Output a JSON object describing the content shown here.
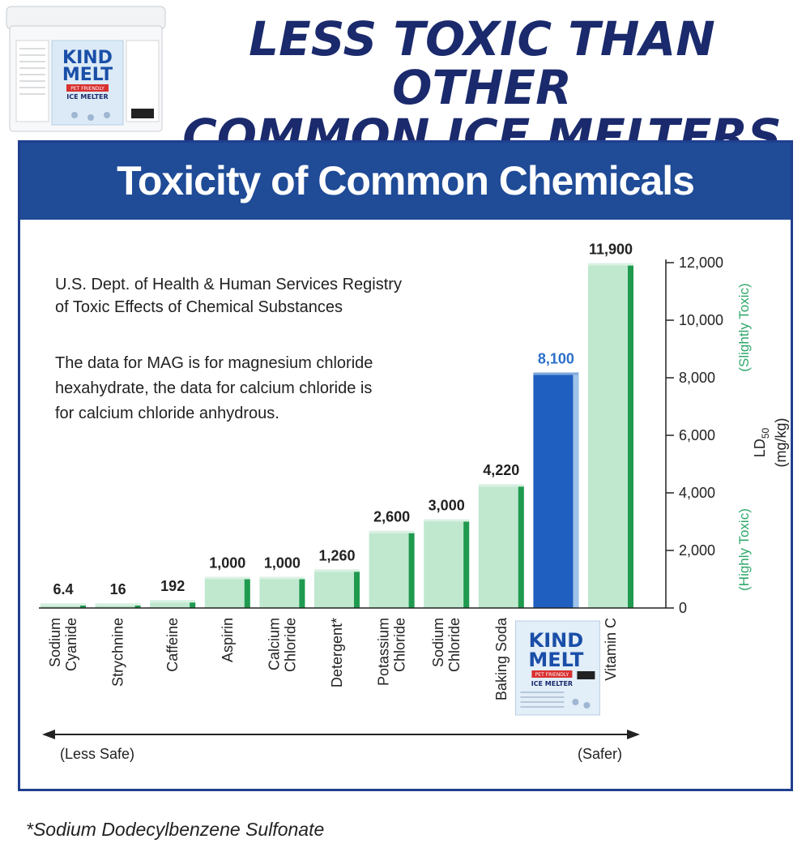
{
  "headline": {
    "line1": "LESS TOXIC THAN OTHER",
    "line2": "COMMON ICE MELTERS"
  },
  "product": {
    "brand_line1": "KIND",
    "brand_line2": "MELT",
    "tag": "PET FRIENDLY",
    "subtitle": "ICE MELTER"
  },
  "panel": {
    "title": "Toxicity of Common Chemicals"
  },
  "notes": {
    "source_line1": "U.S. Dept. of Health & Human Services Registry",
    "source_line2": "of Toxic Effects of Chemical Substances",
    "data_line1": "The data for MAG is for magnesium chloride",
    "data_line2": "hexahydrate, the data for calcium chloride is",
    "data_line3": "for calcium chloride anhydrous."
  },
  "footnote": "*Sodium Dodecylbenzene Sulfonate",
  "chart_data": {
    "type": "bar",
    "title": "Toxicity of Common Chemicals",
    "categories": [
      [
        "Sodium",
        "Cyanide"
      ],
      [
        "Strychnine"
      ],
      [
        "Caffeine"
      ],
      [
        "Aspirin"
      ],
      [
        "Calcium",
        "Chloride"
      ],
      [
        "Detergent*"
      ],
      [
        "Potassium",
        "Chloride"
      ],
      [
        "Sodium",
        "Chloride"
      ],
      [
        "Baking Soda"
      ],
      [],
      [
        "Vitamin C"
      ]
    ],
    "values": [
      6.4,
      16,
      192,
      1000,
      1000,
      1260,
      2600,
      3000,
      4220,
      8100,
      11900
    ],
    "value_labels": [
      "6.4",
      "16",
      "192",
      "1,000",
      "1,000",
      "1,260",
      "2,600",
      "3,000",
      "4,220",
      "8,100",
      "11,900"
    ],
    "highlight_index": 9,
    "ylabel": "LD50",
    "ylabel_sub": "50",
    "ylabel_unit": "(mg/kg)",
    "ylim": [
      0,
      12000
    ],
    "yticks": [
      0,
      2000,
      4000,
      6000,
      8000,
      10000,
      12000
    ],
    "ytick_labels": [
      "0",
      "2,000",
      "4,000",
      "6,000",
      "8,000",
      "10,000",
      "12,000"
    ],
    "scale_low": "(Highly Toxic)",
    "scale_high": "(Slightly Toxic)",
    "arrow_left": "(Less Safe)",
    "arrow_right": "(Safer)",
    "colors": {
      "bar_face": "#bfe8cf",
      "bar_side": "#1f9a4f",
      "highlight_face": "#1f5fbf",
      "highlight_side": "#9ec3ea",
      "axis": "#222222"
    }
  }
}
